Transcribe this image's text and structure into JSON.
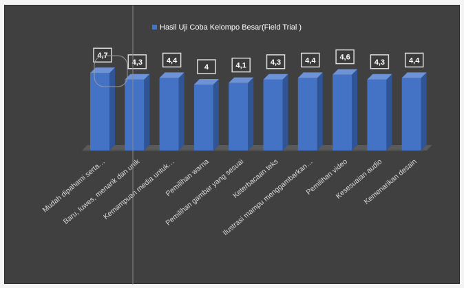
{
  "chart_data": {
    "type": "bar",
    "title": "",
    "xlabel": "",
    "ylabel": "",
    "categories": [
      "Mudah dipahami serta…",
      "Baru, luwes, menarik dan unik",
      "Kemampuan media untuk…",
      "Pemilihan warna",
      "Pemilihan gambar yang sesuai",
      "Keterbacaan teks",
      "Ilustrasi mampu menggambarkan…",
      "Pemilihan video",
      "Kesesuaian audio",
      "Kemenarikan desain"
    ],
    "series": [
      {
        "name": "Hasil Uji Coba Kelompo Besar(Field Trial )",
        "values": [
          4.7,
          4.3,
          4.4,
          4,
          4.1,
          4.3,
          4.4,
          4.6,
          4.3,
          4.4
        ]
      }
    ],
    "data_labels": [
      "4,7",
      "4,3",
      "4,4",
      "4",
      "4,1",
      "4,3",
      "4,4",
      "4,6",
      "4,3",
      "4,4"
    ],
    "legend_position": "top",
    "grid": false,
    "style": "3d-column",
    "colors": {
      "background": "#404040",
      "bar_front": "#4472c4",
      "bar_side": "#2f5597",
      "bar_top": "#6d93d6",
      "label_box": "#3b3b3b",
      "label_text": "#ffffff",
      "axis_text": "#d9d9d9",
      "floor": "#5a5a5a"
    }
  }
}
